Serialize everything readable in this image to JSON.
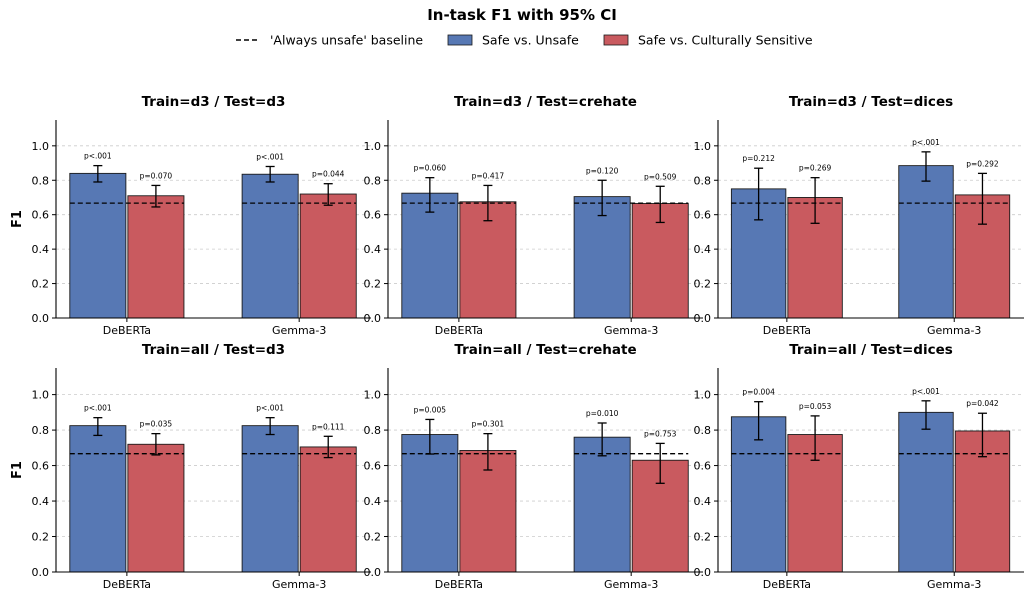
{
  "figure": {
    "title": "In-task F1 with 95% CI",
    "baseline_value": 0.667,
    "legend": {
      "placement": "top-center",
      "items": [
        {
          "label": "'Always unsafe' baseline",
          "kind": "dashed-line",
          "color": "#000000"
        },
        {
          "label": "Safe vs. Unsafe",
          "kind": "patch",
          "color": "#5778b4"
        },
        {
          "label": "Safe vs. Culturally Sensitive",
          "kind": "patch",
          "color": "#c95a5f"
        }
      ]
    }
  },
  "chart_data": [
    {
      "type": "bar",
      "title": "Train=d3  /  Test=d3",
      "ylabel": "F1",
      "ylim": [
        0,
        1.15
      ],
      "yticks": [
        "0.0",
        "0.2",
        "0.4",
        "0.6",
        "0.8",
        "1.0"
      ],
      "grid": "y-dashed",
      "categories": [
        "DeBERTa",
        "Gemma-3"
      ],
      "series": [
        {
          "name": "Safe vs. Unsafe",
          "values": [
            0.84,
            0.835
          ],
          "ci_low": [
            0.79,
            0.79
          ],
          "ci_high": [
            0.885,
            0.88
          ],
          "pvalues": [
            "p<.001",
            "p<.001"
          ]
        },
        {
          "name": "Safe vs. Culturally Sensitive",
          "values": [
            0.71,
            0.72
          ],
          "ci_low": [
            0.645,
            0.655
          ],
          "ci_high": [
            0.77,
            0.78
          ],
          "pvalues": [
            "p=0.070",
            "p=0.044"
          ]
        }
      ]
    },
    {
      "type": "bar",
      "title": "Train=d3  /  Test=crehate",
      "ylabel": "",
      "ylim": [
        0,
        1.15
      ],
      "yticks": [
        "0.0",
        "0.2",
        "0.4",
        "0.6",
        "0.8",
        "1.0"
      ],
      "grid": "y-dashed",
      "categories": [
        "DeBERTa",
        "Gemma-3"
      ],
      "series": [
        {
          "name": "Safe vs. Unsafe",
          "values": [
            0.725,
            0.705
          ],
          "ci_low": [
            0.615,
            0.595
          ],
          "ci_high": [
            0.815,
            0.8
          ],
          "pvalues": [
            "p=0.060",
            "p=0.120"
          ]
        },
        {
          "name": "Safe vs. Culturally Sensitive",
          "values": [
            0.675,
            0.665
          ],
          "ci_low": [
            0.565,
            0.555
          ],
          "ci_high": [
            0.77,
            0.765
          ],
          "pvalues": [
            "p=0.417",
            "p=0.509"
          ]
        }
      ]
    },
    {
      "type": "bar",
      "title": "Train=d3  /  Test=dices",
      "ylabel": "",
      "ylim": [
        0,
        1.15
      ],
      "yticks": [
        "0.0",
        "0.2",
        "0.4",
        "0.6",
        "0.8",
        "1.0"
      ],
      "grid": "y-dashed",
      "categories": [
        "DeBERTa",
        "Gemma-3"
      ],
      "series": [
        {
          "name": "Safe vs. Unsafe",
          "values": [
            0.75,
            0.885
          ],
          "ci_low": [
            0.57,
            0.795
          ],
          "ci_high": [
            0.87,
            0.965
          ],
          "pvalues": [
            "p=0.212",
            "p<.001"
          ]
        },
        {
          "name": "Safe vs. Culturally Sensitive",
          "values": [
            0.7,
            0.715
          ],
          "ci_low": [
            0.55,
            0.545
          ],
          "ci_high": [
            0.815,
            0.84
          ],
          "pvalues": [
            "p=0.269",
            "p=0.292"
          ]
        }
      ]
    },
    {
      "type": "bar",
      "title": "Train=all  /  Test=d3",
      "ylabel": "F1",
      "ylim": [
        0,
        1.15
      ],
      "yticks": [
        "0.0",
        "0.2",
        "0.4",
        "0.6",
        "0.8",
        "1.0"
      ],
      "grid": "y-dashed",
      "categories": [
        "DeBERTa",
        "Gemma-3"
      ],
      "series": [
        {
          "name": "Safe vs. Unsafe",
          "values": [
            0.825,
            0.825
          ],
          "ci_low": [
            0.77,
            0.775
          ],
          "ci_high": [
            0.87,
            0.87
          ],
          "pvalues": [
            "p<.001",
            "p<.001"
          ]
        },
        {
          "name": "Safe vs. Culturally Sensitive",
          "values": [
            0.72,
            0.705
          ],
          "ci_low": [
            0.66,
            0.645
          ],
          "ci_high": [
            0.78,
            0.765
          ],
          "pvalues": [
            "p=0.035",
            "p=0.111"
          ]
        }
      ]
    },
    {
      "type": "bar",
      "title": "Train=all  /  Test=crehate",
      "ylabel": "",
      "ylim": [
        0,
        1.15
      ],
      "yticks": [
        "0.0",
        "0.2",
        "0.4",
        "0.6",
        "0.8",
        "1.0"
      ],
      "grid": "y-dashed",
      "categories": [
        "DeBERTa",
        "Gemma-3"
      ],
      "series": [
        {
          "name": "Safe vs. Unsafe",
          "values": [
            0.775,
            0.76
          ],
          "ci_low": [
            0.665,
            0.655
          ],
          "ci_high": [
            0.86,
            0.84
          ],
          "pvalues": [
            "p=0.005",
            "p=0.010"
          ]
        },
        {
          "name": "Safe vs. Culturally Sensitive",
          "values": [
            0.685,
            0.63
          ],
          "ci_low": [
            0.575,
            0.5
          ],
          "ci_high": [
            0.78,
            0.725
          ],
          "pvalues": [
            "p=0.301",
            "p=0.753"
          ]
        }
      ]
    },
    {
      "type": "bar",
      "title": "Train=all  /  Test=dices",
      "ylabel": "",
      "ylim": [
        0,
        1.15
      ],
      "yticks": [
        "0.0",
        "0.2",
        "0.4",
        "0.6",
        "0.8",
        "1.0"
      ],
      "grid": "y-dashed",
      "categories": [
        "DeBERTa",
        "Gemma-3"
      ],
      "series": [
        {
          "name": "Safe vs. Unsafe",
          "values": [
            0.875,
            0.9
          ],
          "ci_low": [
            0.745,
            0.805
          ],
          "ci_high": [
            0.96,
            0.965
          ],
          "pvalues": [
            "p=0.004",
            "p<.001"
          ]
        },
        {
          "name": "Safe vs. Culturally Sensitive",
          "values": [
            0.775,
            0.795
          ],
          "ci_low": [
            0.63,
            0.65
          ],
          "ci_high": [
            0.88,
            0.895
          ],
          "pvalues": [
            "p=0.053",
            "p=0.042"
          ]
        }
      ]
    }
  ]
}
